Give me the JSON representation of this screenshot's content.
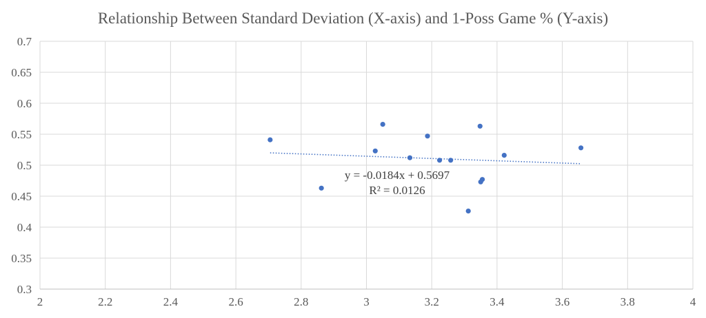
{
  "chart_data": {
    "type": "scatter",
    "title": "Relationship Between Standard Deviation (X-axis) and 1-Poss Game % (Y-axis)",
    "xlabel": "",
    "ylabel": "",
    "xlim": [
      2,
      4
    ],
    "ylim": [
      0.3,
      0.7
    ],
    "x_ticks": [
      "2",
      "2.2",
      "2.4",
      "2.6",
      "2.8",
      "3",
      "3.2",
      "3.4",
      "3.6",
      "3.8",
      "4"
    ],
    "y_ticks": [
      "0.3",
      "0.35",
      "0.4",
      "0.45",
      "0.5",
      "0.55",
      "0.6",
      "0.65",
      "0.7"
    ],
    "grid": true,
    "legend": "none",
    "series": [
      {
        "points": [
          {
            "x": 2.705,
            "y": 0.541
          },
          {
            "x": 2.862,
            "y": 0.463
          },
          {
            "x": 3.027,
            "y": 0.523
          },
          {
            "x": 3.05,
            "y": 0.566
          },
          {
            "x": 3.133,
            "y": 0.512
          },
          {
            "x": 3.187,
            "y": 0.547
          },
          {
            "x": 3.224,
            "y": 0.508
          },
          {
            "x": 3.258,
            "y": 0.508
          },
          {
            "x": 3.312,
            "y": 0.426
          },
          {
            "x": 3.348,
            "y": 0.563
          },
          {
            "x": 3.35,
            "y": 0.473
          },
          {
            "x": 3.355,
            "y": 0.477
          },
          {
            "x": 3.422,
            "y": 0.516
          },
          {
            "x": 3.657,
            "y": 0.528
          }
        ]
      }
    ],
    "trendline": {
      "slope": -0.0184,
      "intercept": 0.5697,
      "x_range": [
        2.705,
        3.657
      ],
      "equation": "y = -0.0184x + 0.5697",
      "r_squared": "R² = 0.0126"
    },
    "colors": {
      "points": "#4472c4",
      "trendline": "#4472c4",
      "grid": "#d9d9d9",
      "text": "#595959"
    }
  }
}
